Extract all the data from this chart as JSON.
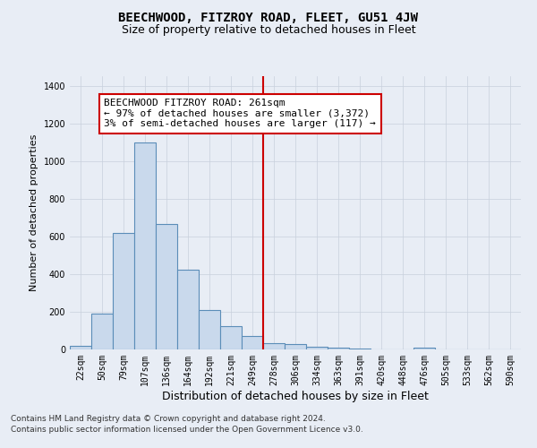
{
  "title": "BEECHWOOD, FITZROY ROAD, FLEET, GU51 4JW",
  "subtitle": "Size of property relative to detached houses in Fleet",
  "xlabel": "Distribution of detached houses by size in Fleet",
  "ylabel": "Number of detached properties",
  "bar_labels": [
    "22sqm",
    "50sqm",
    "79sqm",
    "107sqm",
    "136sqm",
    "164sqm",
    "192sqm",
    "221sqm",
    "249sqm",
    "278sqm",
    "306sqm",
    "334sqm",
    "363sqm",
    "391sqm",
    "420sqm",
    "448sqm",
    "476sqm",
    "505sqm",
    "533sqm",
    "562sqm",
    "590sqm"
  ],
  "bar_values": [
    20,
    190,
    620,
    1100,
    665,
    425,
    210,
    125,
    70,
    35,
    30,
    15,
    10,
    5,
    0,
    0,
    10,
    0,
    0,
    0,
    0
  ],
  "bar_color": "#c9d9ec",
  "bar_edgecolor": "#5b8db8",
  "vline_x": 8.5,
  "annotation_text_line1": "BEECHWOOD FITZROY ROAD: 261sqm",
  "annotation_text_line2": "← 97% of detached houses are smaller (3,372)",
  "annotation_text_line3": "3% of semi-detached houses are larger (117) →",
  "annotation_box_color": "#ffffff",
  "annotation_box_edgecolor": "#cc0000",
  "vline_color": "#cc0000",
  "ylim": [
    0,
    1450
  ],
  "yticks": [
    0,
    200,
    400,
    600,
    800,
    1000,
    1200,
    1400
  ],
  "grid_color": "#c8d0dc",
  "background_color": "#e8edf5",
  "footer_line1": "Contains HM Land Registry data © Crown copyright and database right 2024.",
  "footer_line2": "Contains public sector information licensed under the Open Government Licence v3.0.",
  "title_fontsize": 10,
  "subtitle_fontsize": 9,
  "tick_fontsize": 7,
  "ylabel_fontsize": 8,
  "xlabel_fontsize": 9,
  "annotation_fontsize": 8,
  "footer_fontsize": 6.5
}
